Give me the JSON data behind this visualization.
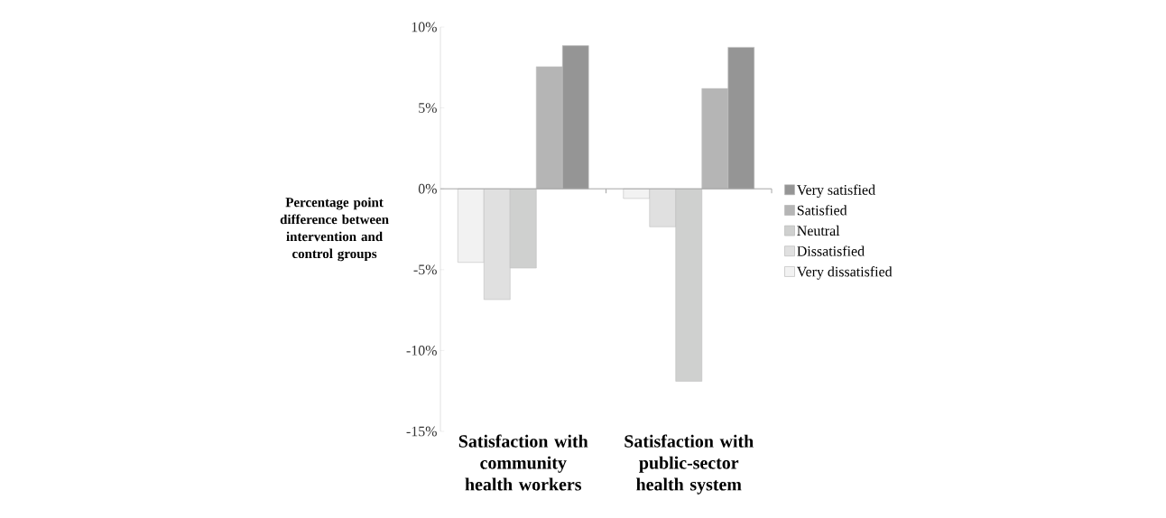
{
  "chart_data": {
    "type": "bar",
    "ylabel": "Percentage point difference between intervention and control groups",
    "categories": [
      "Satisfaction with community health workers",
      "Satisfaction with public-sector health system"
    ],
    "series": [
      {
        "name": "Very dissatisfied",
        "color": "#f2f2f2",
        "values": [
          -4.55,
          -0.6
        ]
      },
      {
        "name": "Dissatisfied",
        "color": "#e0e0e0",
        "values": [
          -6.85,
          -2.35
        ]
      },
      {
        "name": "Neutral",
        "color": "#cfd0cf",
        "values": [
          -4.9,
          -11.9
        ]
      },
      {
        "name": "Satisfied",
        "color": "#b5b5b5",
        "values": [
          7.55,
          6.2
        ]
      },
      {
        "name": "Very satisfied",
        "color": "#959595",
        "values": [
          8.85,
          8.75
        ]
      }
    ],
    "ylim": [
      -15,
      10
    ],
    "yticks": [
      {
        "value": -15,
        "label": "-15%"
      },
      {
        "value": -10,
        "label": "-10%"
      },
      {
        "value": -5,
        "label": "-5%"
      },
      {
        "value": 0,
        "label": "0%"
      },
      {
        "value": 5,
        "label": "5%"
      },
      {
        "value": 10,
        "label": "10%"
      }
    ],
    "legend": "right"
  }
}
